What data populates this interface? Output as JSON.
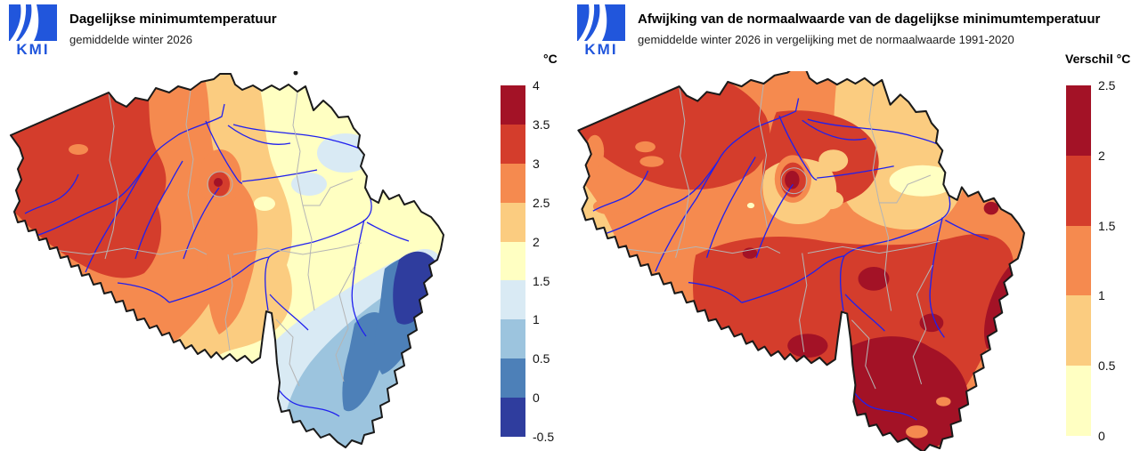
{
  "brand": {
    "logo_text": "KMI"
  },
  "left_map": {
    "title": "Dagelijkse minimumtemperatuur",
    "subtitle": "gemiddelde winter 2026",
    "legend_title": "°C",
    "legend": {
      "colors": [
        "#a31226",
        "#d43d2c",
        "#f58a4f",
        "#fbcc80",
        "#ffffc2",
        "#d9eaf4",
        "#9cc4de",
        "#4d80b8",
        "#2f3d9e"
      ],
      "labels": [
        "4",
        "3.5",
        "3",
        "2.5",
        "2",
        "1.5",
        "1",
        "0.5",
        "0",
        "-0.5"
      ]
    }
  },
  "right_map": {
    "title": "Afwijking van de normaalwaarde van de dagelijkse minimumtemperatuur",
    "subtitle": "gemiddelde winter 2026 in vergelijking met de normaalwaarde 1991-2020",
    "legend_title": "Verschil °C",
    "legend": {
      "colors": [
        "#a31226",
        "#d43d2c",
        "#f58a4f",
        "#fbcc80",
        "#ffffc2"
      ],
      "labels": [
        "2.5",
        "2",
        "1.5",
        "1",
        "0.5",
        "0"
      ]
    }
  },
  "palette": {
    "t40": "#a31226",
    "t35": "#d43d2c",
    "t30": "#f58a4f",
    "t25": "#fbcc80",
    "t20": "#ffffc2",
    "t15": "#d9eaf4",
    "t10": "#9cc4de",
    "t05": "#4d80b8",
    "t00": "#2f3d9e",
    "river": "#2020ee",
    "boundary": "#b5b5b5",
    "outline": "#1a1a1a",
    "logo": "#2156dc"
  }
}
